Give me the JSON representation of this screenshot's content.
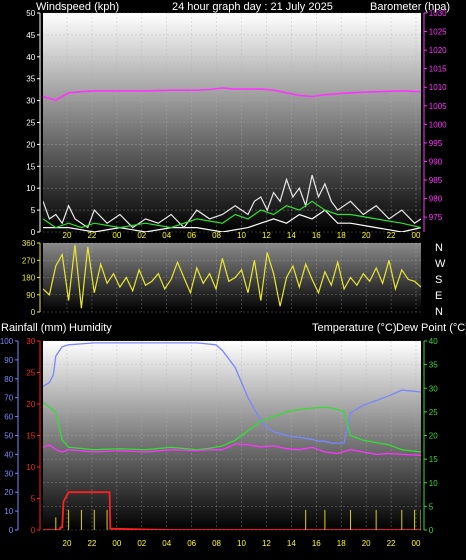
{
  "header": {
    "left": "Windspeed (kph)",
    "center": "24 hour graph day : 21 July 2025",
    "right": "Barometer (hpa)"
  },
  "colors": {
    "background": "#000000",
    "plot_top": "#ffffff",
    "plot_bottom": "#000000",
    "grid": "#b0b0b0",
    "axis_white": "#ffffff",
    "baro": "#ff33ff",
    "gust": "#e8e8e8",
    "wind_avg": "#33dd33",
    "wind_lull": "#ffffff",
    "time_axis": "#ffff00",
    "wind_dir": "#e8e830",
    "humidity": "#7a86ff",
    "rain": "#ff2020",
    "rain_rate": "#d8d020",
    "temperature": "#ff33ff",
    "dew_point": "#33dd33",
    "compass": "#ffffff"
  },
  "time_labels": [
    "20",
    "22",
    "00",
    "02",
    "04",
    "06",
    "08",
    "10",
    "12",
    "14",
    "16",
    "18",
    "20",
    "22",
    "00"
  ],
  "compass": [
    "N",
    "W",
    "S",
    "E",
    "N"
  ],
  "panel3_labels": {
    "left": "Rainfall (mm)",
    "left2": "Humidity",
    "right": "Temperature (°C)",
    "right2": "Dew Point (°C)"
  },
  "chart_data": [
    {
      "type": "line",
      "x_unit": "hours since 19:00 on 20 July 2025",
      "xlim": [
        0,
        29.5
      ],
      "y_left": {
        "ylim": [
          0,
          50
        ],
        "ticks": [
          0,
          5,
          10,
          15,
          20,
          25,
          30,
          35,
          40,
          45,
          50
        ]
      },
      "y_right": {
        "ylim": [
          971,
          1030
        ],
        "ticks": [
          975,
          980,
          985,
          990,
          995,
          1000,
          1005,
          1010,
          1015,
          1020,
          1025,
          1030
        ]
      },
      "series": [
        {
          "axis": "right",
          "x": [
            0,
            1,
            2,
            3,
            4,
            6,
            8,
            10,
            12,
            13,
            14,
            15,
            17,
            18,
            19,
            20,
            21,
            22,
            24,
            26,
            28,
            29.5
          ],
          "values": [
            1007.5,
            1006.5,
            1008.5,
            1008.8,
            1009,
            1009,
            1009,
            1009.2,
            1009.2,
            1009.4,
            1009.8,
            1009.5,
            1009.5,
            1009.2,
            1008.5,
            1007.8,
            1007.5,
            1008,
            1008.5,
            1008.8,
            1009,
            1008.8
          ]
        },
        {
          "axis": "left",
          "x": [
            0,
            0.5,
            1,
            1.5,
            2,
            2.5,
            3,
            3.5,
            4,
            5,
            6,
            7,
            8,
            9,
            10,
            11,
            12,
            13,
            14,
            15,
            15.5,
            16,
            16.5,
            17,
            17.5,
            18,
            18.5,
            19,
            19.5,
            20,
            20.5,
            21,
            21.5,
            22,
            22.5,
            23,
            24,
            25,
            26,
            27,
            28,
            29,
            29.5
          ],
          "values": [
            7,
            3,
            4,
            2,
            6,
            3,
            2,
            1,
            5,
            2,
            4,
            1,
            3,
            2,
            4,
            1,
            5,
            3,
            4,
            6,
            5,
            4,
            7,
            8,
            5,
            9,
            7,
            12,
            8,
            10,
            6,
            13,
            8,
            11,
            7,
            5,
            7,
            4,
            6,
            3,
            5,
            2,
            3
          ]
        },
        {
          "axis": "left",
          "x": [
            0,
            1,
            2,
            3,
            4,
            6,
            8,
            10,
            12,
            14,
            15,
            16,
            17,
            18,
            19,
            20,
            21,
            22,
            23,
            24,
            26,
            28,
            29.5
          ],
          "values": [
            3,
            1,
            2,
            1,
            2,
            1,
            2,
            1,
            3,
            2,
            4,
            3,
            5,
            4,
            6,
            5,
            7,
            5,
            4,
            4,
            3,
            2,
            1
          ]
        },
        {
          "axis": "left",
          "x": [
            0,
            2,
            4,
            6,
            8,
            10,
            12,
            14,
            16,
            17,
            18,
            19,
            20,
            21,
            22,
            23,
            24,
            26,
            28,
            29.5
          ],
          "values": [
            1,
            1,
            0,
            1,
            0,
            1,
            1,
            0,
            1,
            2,
            3,
            2,
            4,
            3,
            5,
            2,
            2,
            1,
            0,
            1
          ]
        }
      ]
    },
    {
      "type": "line",
      "x_unit": "hours since 19:00 on 20 July 2025",
      "xlim": [
        0,
        29.5
      ],
      "ylim": [
        0,
        360
      ],
      "ticks": [
        0,
        90,
        180,
        270,
        360
      ],
      "series": [
        {
          "x": [
            0,
            0.5,
            1,
            1.5,
            2,
            2.5,
            3,
            3.5,
            4,
            4.5,
            5,
            5.5,
            6,
            6.5,
            7,
            7.5,
            8,
            8.5,
            9,
            9.5,
            10,
            10.5,
            11,
            11.5,
            12,
            12.5,
            13,
            13.5,
            14,
            14.5,
            15,
            15.5,
            16,
            16.5,
            17,
            17.5,
            18,
            18.5,
            19,
            19.5,
            20,
            20.5,
            21,
            21.5,
            22,
            22.5,
            23,
            23.5,
            24,
            24.5,
            25,
            25.5,
            26,
            26.5,
            27,
            27.5,
            28,
            28.5,
            29,
            29.5
          ],
          "values": [
            120,
            90,
            240,
            300,
            60,
            350,
            20,
            340,
            100,
            250,
            150,
            200,
            130,
            180,
            110,
            220,
            140,
            160,
            200,
            120,
            170,
            260,
            180,
            100,
            230,
            150,
            200,
            120,
            280,
            160,
            180,
            220,
            100,
            270,
            60,
            310,
            200,
            30,
            180,
            240,
            130,
            250,
            170,
            100,
            210,
            140,
            260,
            120,
            180,
            140,
            200,
            160,
            230,
            150,
            270,
            120,
            220,
            170,
            160,
            130
          ]
        }
      ]
    },
    {
      "type": "line",
      "x_unit": "hours since 19:00 on 20 July 2025",
      "xlim": [
        0,
        29.5
      ],
      "y_left_rain": {
        "ylim": [
          0,
          30
        ],
        "ticks": [
          0,
          5,
          10,
          15,
          20,
          25,
          30
        ]
      },
      "y_left_humidity": {
        "ylim": [
          0,
          100
        ],
        "ticks": [
          0,
          10,
          20,
          30,
          40,
          50,
          60,
          70,
          80,
          90,
          100
        ]
      },
      "y_right": {
        "ylim": [
          0,
          40
        ],
        "ticks": [
          0,
          5,
          10,
          15,
          20,
          25,
          30,
          35,
          40
        ]
      },
      "series": [
        {
          "axis": "humidity",
          "x": [
            0,
            0.5,
            0.8,
            1,
            1.5,
            2,
            4,
            6,
            8,
            10,
            12,
            13.5,
            14,
            15,
            16,
            17,
            17.5,
            18,
            19,
            20,
            21,
            21.5,
            22,
            22.5,
            23,
            23.5,
            24,
            25,
            27,
            28,
            29.5
          ],
          "values": [
            76,
            78,
            82,
            92,
            97,
            98,
            99,
            99,
            99,
            99,
            99,
            98,
            95,
            86,
            70,
            58,
            54,
            52,
            50,
            49,
            48,
            47,
            47,
            46,
            46,
            46,
            62,
            66,
            71,
            74,
            73
          ]
        },
        {
          "axis": "right",
          "x": [
            0,
            0.5,
            1,
            1.5,
            2,
            4,
            6,
            8,
            10,
            12,
            13,
            14,
            15,
            16,
            17,
            18,
            19,
            20,
            21,
            22,
            23,
            24,
            25,
            26,
            27,
            28,
            29.5
          ],
          "values": [
            17.5,
            18,
            17,
            16.5,
            17,
            16.5,
            16.8,
            16.5,
            17,
            16.8,
            17,
            17,
            18.2,
            18,
            17.6,
            17.8,
            17.2,
            17,
            17.5,
            16.5,
            16.2,
            17,
            16.5,
            16,
            16.2,
            16,
            15.8
          ]
        },
        {
          "axis": "right",
          "x": [
            0,
            0.5,
            1,
            1.5,
            2,
            4,
            6,
            8,
            10,
            12,
            13,
            14,
            15,
            16,
            17,
            18,
            19,
            20,
            21,
            22,
            22.5,
            23,
            23.5,
            24,
            25,
            26,
            27,
            28,
            29.5
          ],
          "values": [
            27,
            26,
            25,
            19,
            17.5,
            17,
            17.2,
            17,
            17.5,
            17,
            17.3,
            17.8,
            19,
            21,
            23,
            24,
            25,
            25.5,
            25.8,
            26,
            25.8,
            25.5,
            25,
            20,
            19,
            18.5,
            18,
            17,
            16.5
          ]
        },
        {
          "axis": "rain",
          "x": [
            0,
            1.3,
            1.35,
            1.5,
            1.6,
            2,
            3,
            4,
            5,
            5.2,
            5.25,
            10,
            20,
            20.5,
            22,
            24,
            26,
            28,
            29.2,
            29.25,
            29.5
          ],
          "values": [
            0,
            0,
            0.4,
            0.4,
            4.5,
            6,
            6,
            6,
            6,
            6,
            0.2,
            0,
            0,
            0,
            0,
            0,
            0,
            0,
            0,
            0,
            0
          ]
        },
        {
          "axis": "rain",
          "x": [
            0,
            1,
            2,
            3,
            4,
            5,
            5.5,
            20,
            20.5,
            22,
            24,
            26,
            28,
            29,
            29.5
          ],
          "values": [
            0,
            0.5,
            0.8,
            0.8,
            0.8,
            0.8,
            0,
            0,
            0.8,
            0.8,
            0.8,
            0.8,
            0.8,
            0.8,
            0.8
          ]
        }
      ]
    }
  ]
}
